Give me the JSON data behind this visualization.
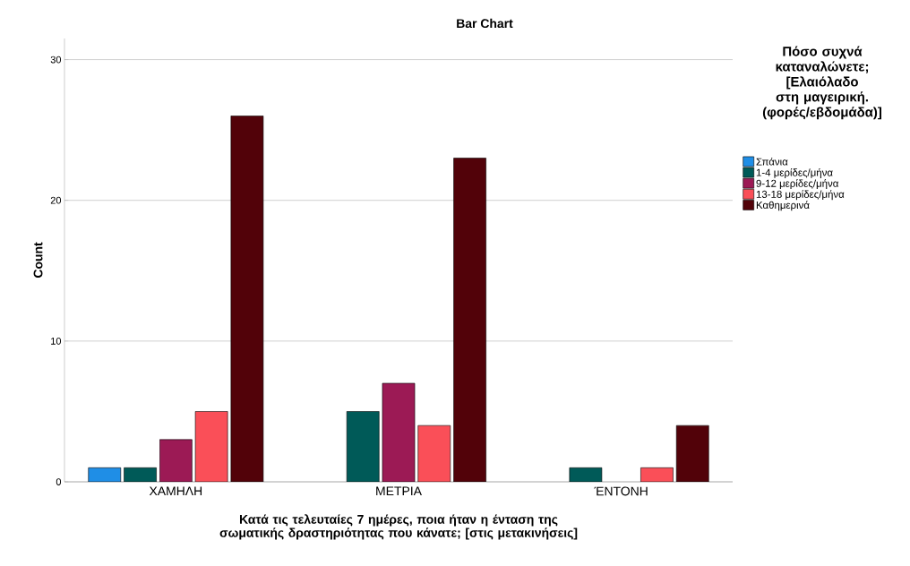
{
  "chart_data": {
    "type": "bar",
    "title": "Bar Chart",
    "xlabel": "Κατά τις τελευταίες 7 ημέρες, ποια ήταν η ένταση της σωματικής δραστηριότητας που κάνατε; [στις μετακινήσεις]",
    "ylabel": "Count",
    "legend_title": "Πόσο συχνά καταναλώνετε; [Ελαιόλαδο στη μαγειρική. (φορές/εβδομάδα)]",
    "categories": [
      "ΧΑΜΗΛΗ",
      "ΜΕΤΡΙΑ",
      "ΈΝΤΟΝΗ"
    ],
    "series": [
      {
        "name": "Σπάνια",
        "color": "#1f8ee6",
        "values": [
          1,
          null,
          null
        ]
      },
      {
        "name": "1-4 μερίδες/μήνα",
        "color": "#005a58",
        "values": [
          1,
          5,
          1
        ]
      },
      {
        "name": "9-12 μερίδες/μήνα",
        "color": "#9c1a55",
        "values": [
          3,
          7,
          null
        ]
      },
      {
        "name": "13-18 μερίδες/μήνα",
        "color": "#fa4f58",
        "values": [
          5,
          4,
          1
        ]
      },
      {
        "name": "Καθημερινά",
        "color": "#520209",
        "values": [
          26,
          23,
          4
        ]
      }
    ],
    "ylim": [
      0,
      31.5
    ],
    "yticks": [
      0,
      10,
      20,
      30
    ],
    "grid": "y",
    "legend": "right"
  }
}
